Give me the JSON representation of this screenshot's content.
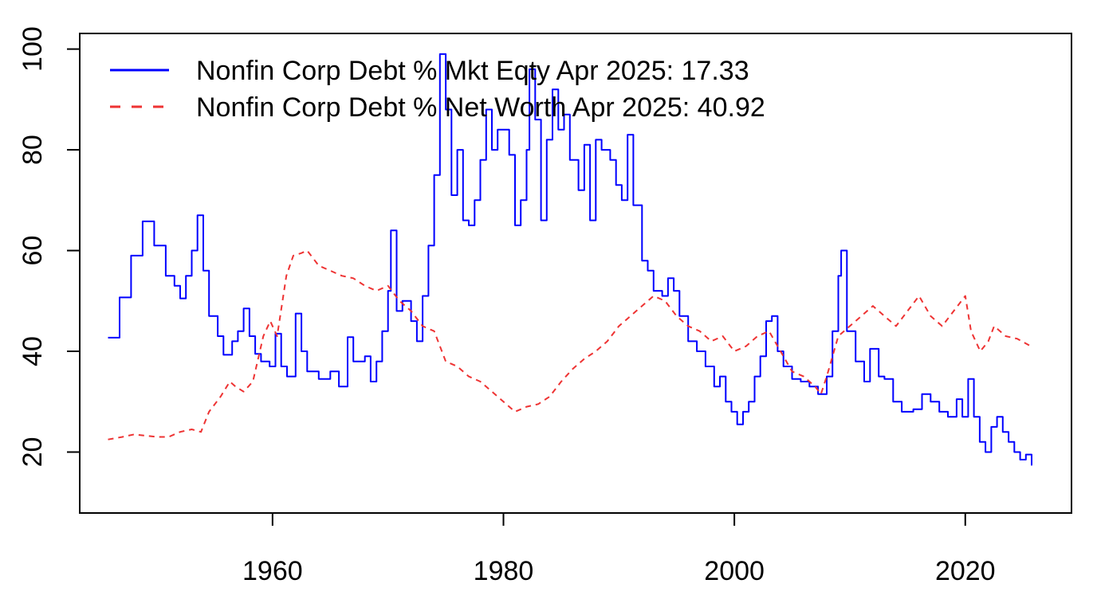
{
  "chart_data": {
    "type": "line",
    "title": "",
    "xlabel": "",
    "ylabel": "",
    "xlim": [
      1943.3,
      2029.2
    ],
    "ylim": [
      7.9,
      103.1
    ],
    "x_ticks": [
      1960,
      1980,
      2000,
      2020
    ],
    "y_ticks": [
      20,
      40,
      60,
      80,
      100
    ],
    "grid": false,
    "legend": {
      "position": "top-left",
      "entries": [
        {
          "label": "Nonfin Corp Debt % Mkt Eqty Apr 2025: 17.33",
          "color": "#0000ff",
          "dash": "solid"
        },
        {
          "label": "Nonfin Corp Debt % Net Worth Apr 2025: 40.92",
          "color": "#ee3333",
          "dash": "dashed"
        }
      ]
    },
    "series": [
      {
        "color": "#0000ff",
        "style": "step",
        "points": [
          [
            1945.75,
            42.7
          ],
          [
            1946.75,
            50.7
          ],
          [
            1947.75,
            59.0
          ],
          [
            1948.75,
            65.8
          ],
          [
            1949.75,
            61.0
          ],
          [
            1950.75,
            55.0
          ],
          [
            1951.5,
            53.0
          ],
          [
            1952.0,
            50.5
          ],
          [
            1952.5,
            55.0
          ],
          [
            1953.0,
            60.0
          ],
          [
            1953.5,
            67.0
          ],
          [
            1954.0,
            56.0
          ],
          [
            1954.5,
            47.0
          ],
          [
            1955.25,
            43.0
          ],
          [
            1955.75,
            39.3
          ],
          [
            1956.5,
            42.0
          ],
          [
            1957.0,
            44.0
          ],
          [
            1957.5,
            48.5
          ],
          [
            1958.0,
            43.0
          ],
          [
            1958.5,
            39.5
          ],
          [
            1959.0,
            38.0
          ],
          [
            1959.75,
            37.0
          ],
          [
            1960.25,
            43.5
          ],
          [
            1960.75,
            37.0
          ],
          [
            1961.25,
            35.0
          ],
          [
            1962.0,
            47.5
          ],
          [
            1962.5,
            40.0
          ],
          [
            1963.0,
            36.0
          ],
          [
            1964.0,
            34.5
          ],
          [
            1965.0,
            36.0
          ],
          [
            1965.75,
            33.0
          ],
          [
            1966.5,
            42.8
          ],
          [
            1967.0,
            38.0
          ],
          [
            1968.0,
            39.0
          ],
          [
            1968.5,
            34.0
          ],
          [
            1969.0,
            38.0
          ],
          [
            1969.5,
            44.0
          ],
          [
            1970.0,
            52.0
          ],
          [
            1970.25,
            64.0
          ],
          [
            1970.75,
            48.0
          ],
          [
            1971.25,
            50.0
          ],
          [
            1972.0,
            46.0
          ],
          [
            1972.5,
            42.0
          ],
          [
            1973.0,
            51.0
          ],
          [
            1973.5,
            61.0
          ],
          [
            1974.0,
            75.0
          ],
          [
            1974.5,
            99.0
          ],
          [
            1975.0,
            88.0
          ],
          [
            1975.5,
            71.0
          ],
          [
            1976.0,
            80.0
          ],
          [
            1976.5,
            66.0
          ],
          [
            1977.0,
            65.0
          ],
          [
            1977.5,
            70.0
          ],
          [
            1978.0,
            78.0
          ],
          [
            1978.5,
            88.0
          ],
          [
            1979.0,
            80.0
          ],
          [
            1979.5,
            84.0
          ],
          [
            1980.0,
            84.0
          ],
          [
            1980.5,
            79.0
          ],
          [
            1981.0,
            65.0
          ],
          [
            1981.5,
            70.0
          ],
          [
            1982.0,
            80.0
          ],
          [
            1982.25,
            96.0
          ],
          [
            1982.75,
            86.0
          ],
          [
            1983.25,
            66.0
          ],
          [
            1983.75,
            82.0
          ],
          [
            1984.25,
            92.0
          ],
          [
            1984.75,
            84.0
          ],
          [
            1985.25,
            87.0
          ],
          [
            1985.75,
            78.0
          ],
          [
            1986.5,
            72.0
          ],
          [
            1987.0,
            81.0
          ],
          [
            1987.5,
            66.0
          ],
          [
            1988.0,
            82.0
          ],
          [
            1988.5,
            80.0
          ],
          [
            1989.25,
            78.0
          ],
          [
            1989.75,
            73.0
          ],
          [
            1990.25,
            70.0
          ],
          [
            1990.75,
            83.0
          ],
          [
            1991.25,
            69.0
          ],
          [
            1992.0,
            58.0
          ],
          [
            1992.5,
            56.0
          ],
          [
            1993.0,
            52.0
          ],
          [
            1993.75,
            51.0
          ],
          [
            1994.25,
            54.5
          ],
          [
            1994.75,
            52.0
          ],
          [
            1995.25,
            47.0
          ],
          [
            1996.0,
            42.0
          ],
          [
            1996.75,
            40.0
          ],
          [
            1997.5,
            37.0
          ],
          [
            1998.25,
            33.0
          ],
          [
            1998.75,
            35.0
          ],
          [
            1999.25,
            30.0
          ],
          [
            1999.75,
            28.0
          ],
          [
            2000.25,
            25.5
          ],
          [
            2000.75,
            28.0
          ],
          [
            2001.25,
            30.0
          ],
          [
            2001.75,
            35.0
          ],
          [
            2002.25,
            39.0
          ],
          [
            2002.75,
            46.0
          ],
          [
            2003.25,
            47.0
          ],
          [
            2003.75,
            40.0
          ],
          [
            2004.25,
            37.0
          ],
          [
            2005.0,
            34.5
          ],
          [
            2005.75,
            34.0
          ],
          [
            2006.5,
            33.0
          ],
          [
            2007.25,
            31.5
          ],
          [
            2008.0,
            35.0
          ],
          [
            2008.5,
            44.0
          ],
          [
            2009.0,
            55.0
          ],
          [
            2009.25,
            60.0
          ],
          [
            2009.75,
            44.0
          ],
          [
            2010.5,
            38.0
          ],
          [
            2011.25,
            34.0
          ],
          [
            2011.75,
            40.5
          ],
          [
            2012.5,
            35.0
          ],
          [
            2013.0,
            34.5
          ],
          [
            2013.75,
            30.0
          ],
          [
            2014.5,
            28.0
          ],
          [
            2015.5,
            28.5
          ],
          [
            2016.25,
            31.5
          ],
          [
            2017.0,
            30.0
          ],
          [
            2017.75,
            28.0
          ],
          [
            2018.5,
            27.0
          ],
          [
            2019.25,
            30.5
          ],
          [
            2019.75,
            27.0
          ],
          [
            2020.25,
            34.5
          ],
          [
            2020.75,
            27.0
          ],
          [
            2021.25,
            22.0
          ],
          [
            2021.75,
            20.0
          ],
          [
            2022.25,
            25.0
          ],
          [
            2022.75,
            27.0
          ],
          [
            2023.25,
            24.0
          ],
          [
            2023.75,
            22.0
          ],
          [
            2024.25,
            20.0
          ],
          [
            2024.75,
            18.5
          ],
          [
            2025.25,
            19.5
          ],
          [
            2025.75,
            17.33
          ]
        ]
      },
      {
        "color": "#ee3333",
        "style": "line",
        "points": [
          [
            1945.75,
            22.5
          ],
          [
            1947.0,
            23.0
          ],
          [
            1948.0,
            23.5
          ],
          [
            1950.0,
            23.0
          ],
          [
            1951.0,
            23.0
          ],
          [
            1952.0,
            24.0
          ],
          [
            1953.0,
            24.5
          ],
          [
            1953.8,
            24.0
          ],
          [
            1954.5,
            28.0
          ],
          [
            1955.5,
            31.0
          ],
          [
            1956.3,
            34.0
          ],
          [
            1956.8,
            33.0
          ],
          [
            1957.5,
            32.0
          ],
          [
            1958.3,
            34.0
          ],
          [
            1959.2,
            43.0
          ],
          [
            1959.8,
            46.0
          ],
          [
            1960.4,
            43.0
          ],
          [
            1961.2,
            55.0
          ],
          [
            1961.8,
            59.0
          ],
          [
            1962.5,
            59.5
          ],
          [
            1963.0,
            60.0
          ],
          [
            1964.0,
            57.0
          ],
          [
            1965.0,
            56.0
          ],
          [
            1966.0,
            55.0
          ],
          [
            1967.0,
            54.5
          ],
          [
            1968.0,
            53.0
          ],
          [
            1969.0,
            52.0
          ],
          [
            1970.0,
            53.0
          ],
          [
            1971.0,
            50.0
          ],
          [
            1972.0,
            48.0
          ],
          [
            1973.0,
            45.0
          ],
          [
            1974.0,
            44.0
          ],
          [
            1975.0,
            38.0
          ],
          [
            1976.0,
            37.0
          ],
          [
            1977.0,
            35.0
          ],
          [
            1978.0,
            34.0
          ],
          [
            1979.0,
            32.0
          ],
          [
            1980.0,
            30.0
          ],
          [
            1981.0,
            28.0
          ],
          [
            1982.0,
            29.0
          ],
          [
            1983.0,
            29.5
          ],
          [
            1984.0,
            31.0
          ],
          [
            1985.0,
            34.0
          ],
          [
            1986.0,
            36.5
          ],
          [
            1987.0,
            38.5
          ],
          [
            1988.0,
            40.0
          ],
          [
            1989.0,
            42.0
          ],
          [
            1990.0,
            45.0
          ],
          [
            1991.0,
            47.0
          ],
          [
            1992.0,
            49.0
          ],
          [
            1993.0,
            51.0
          ],
          [
            1994.0,
            50.0
          ],
          [
            1995.0,
            47.0
          ],
          [
            1996.0,
            45.0
          ],
          [
            1997.0,
            44.0
          ],
          [
            1998.0,
            42.0
          ],
          [
            1999.0,
            43.0
          ],
          [
            2000.0,
            40.0
          ],
          [
            2001.0,
            41.0
          ],
          [
            2002.0,
            43.0
          ],
          [
            2003.0,
            44.0
          ],
          [
            2004.0,
            40.0
          ],
          [
            2005.0,
            36.0
          ],
          [
            2006.0,
            35.0
          ],
          [
            2007.0,
            33.0
          ],
          [
            2007.5,
            31.5
          ],
          [
            2008.0,
            35.0
          ],
          [
            2009.0,
            43.0
          ],
          [
            2010.0,
            45.0
          ],
          [
            2011.0,
            47.0
          ],
          [
            2012.0,
            49.0
          ],
          [
            2013.0,
            47.0
          ],
          [
            2014.0,
            45.0
          ],
          [
            2015.0,
            48.0
          ],
          [
            2016.0,
            51.0
          ],
          [
            2017.0,
            47.0
          ],
          [
            2018.0,
            45.0
          ],
          [
            2019.0,
            48.0
          ],
          [
            2020.0,
            51.0
          ],
          [
            2020.5,
            44.0
          ],
          [
            2021.3,
            40.0
          ],
          [
            2022.0,
            42.0
          ],
          [
            2022.5,
            45.0
          ],
          [
            2023.5,
            43.0
          ],
          [
            2024.5,
            42.5
          ],
          [
            2025.75,
            40.92
          ]
        ]
      }
    ]
  }
}
